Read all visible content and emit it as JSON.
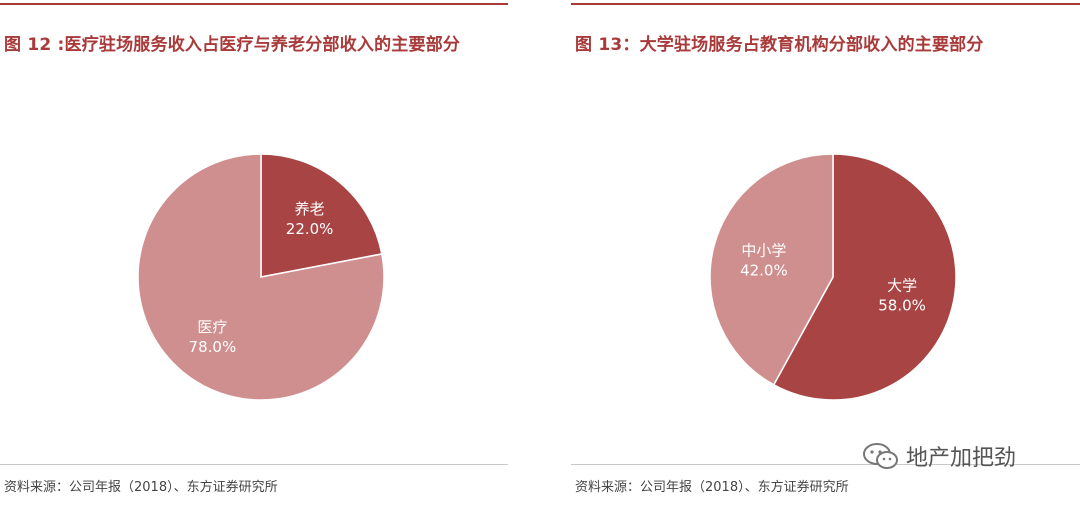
{
  "chart_data": [
    {
      "type": "pie",
      "title": "图 12 :医疗驻场服务收入占医疗与养老分部收入的主要部分",
      "slices": [
        {
          "label": "养老",
          "value": 22.0,
          "value_label": "22.0%",
          "color": "#a94444"
        },
        {
          "label": "医疗",
          "value": 78.0,
          "value_label": "78.0%",
          "color": "#d08f8f"
        }
      ],
      "source": "资料来源：公司年报（2018）、东方证券研究所"
    },
    {
      "type": "pie",
      "title": "图 13：大学驻场服务占教育机构分部收入的主要部分",
      "slices": [
        {
          "label": "大学",
          "value": 58.0,
          "value_label": "58.0%",
          "color": "#a94444"
        },
        {
          "label": "中小学",
          "value": 42.0,
          "value_label": "42.0%",
          "color": "#d08f8f"
        }
      ],
      "source": "资料来源：公司年报（2018）、东方证券研究所"
    }
  ],
  "watermark": {
    "text": "地产加把劲",
    "icon": "wechat-icon"
  }
}
